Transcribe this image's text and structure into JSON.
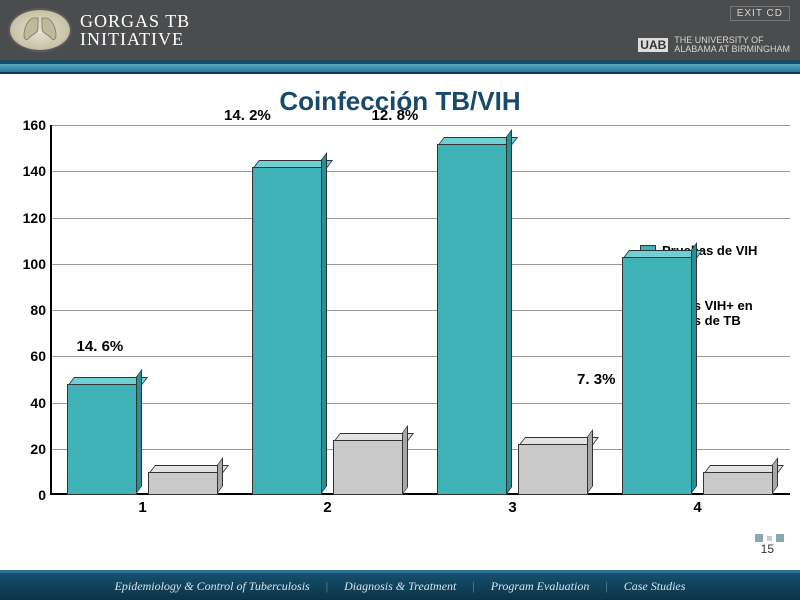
{
  "header": {
    "brand_line1": "GORGAS TB",
    "brand_line2": "INITIATIVE",
    "exit_label": "EXIT CD",
    "uab_mark": "UAB",
    "uab_line1": "THE UNIVERSITY OF",
    "uab_line2": "ALABAMA AT BIRMINGHAM"
  },
  "title": "Coinfección TB/VIH",
  "chart": {
    "type": "bar",
    "y": {
      "min": 0,
      "max": 160,
      "step": 20
    },
    "categories": [
      "1",
      "2",
      "3",
      "4"
    ],
    "series": [
      {
        "key": "pruebas",
        "label": "Pruebas de VIH",
        "color": "#3fb2b7",
        "color_top": "#6fd0d4",
        "color_side": "#2b8e92",
        "values": [
          48,
          142,
          152,
          103
        ]
      },
      {
        "key": "casos",
        "label": "Casos VIH+ en Casos de TB",
        "color": "#c9c9c9",
        "color_top": "#e2e2e2",
        "color_side": "#a7a7a7",
        "values": [
          10,
          24,
          22,
          10
        ]
      }
    ],
    "percent_labels": [
      {
        "cat": 0,
        "text": "14. 6%",
        "y": 60
      },
      {
        "cat": 1,
        "text": "14. 2%",
        "y": 160
      },
      {
        "cat": 2,
        "text": "12. 8%",
        "y": 160
      },
      {
        "cat": 3,
        "text": "7. 3%",
        "y": 46,
        "dx": 58
      }
    ],
    "grid_color": "#9a9a9a",
    "background": "#ffffff",
    "bar_width_pct": 38,
    "bar_gap_pct": 6
  },
  "legend": {
    "items": [
      {
        "label": "Pruebas de VIH",
        "color": "#3fb2b7"
      },
      {
        "label": "Casos VIH+ en Casos de TB",
        "color": "#c9c9c9"
      }
    ]
  },
  "footer": {
    "items": [
      "Epidemiology & Control of Tuberculosis",
      "Diagnosis & Treatment",
      "Program Evaluation",
      "Case Studies"
    ],
    "page_number": "15"
  }
}
